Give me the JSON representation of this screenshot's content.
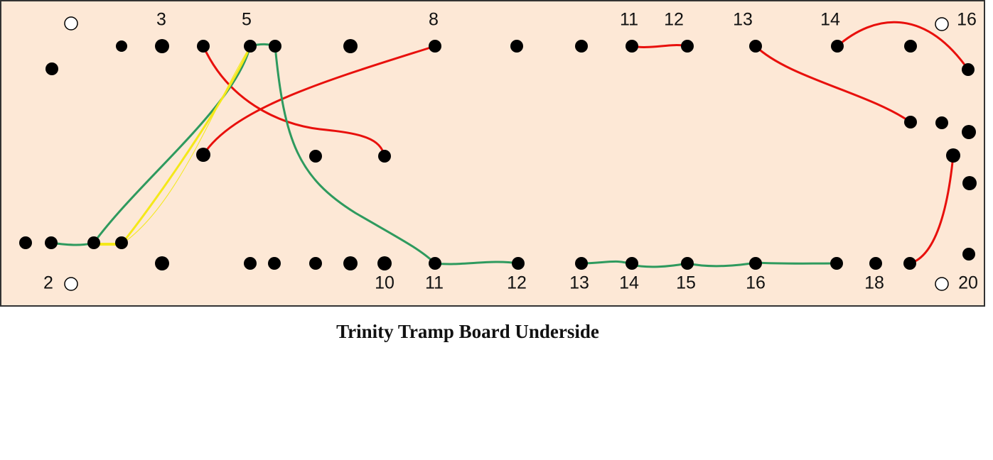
{
  "caption": "Trinity Tramp Board Underside",
  "top_labels": [
    "3",
    "5",
    "8",
    "11",
    "12",
    "13",
    "14",
    "16"
  ],
  "bottom_labels": [
    "2",
    "10",
    "11",
    "12",
    "13",
    "14",
    "15",
    "16",
    "18",
    "20"
  ]
}
